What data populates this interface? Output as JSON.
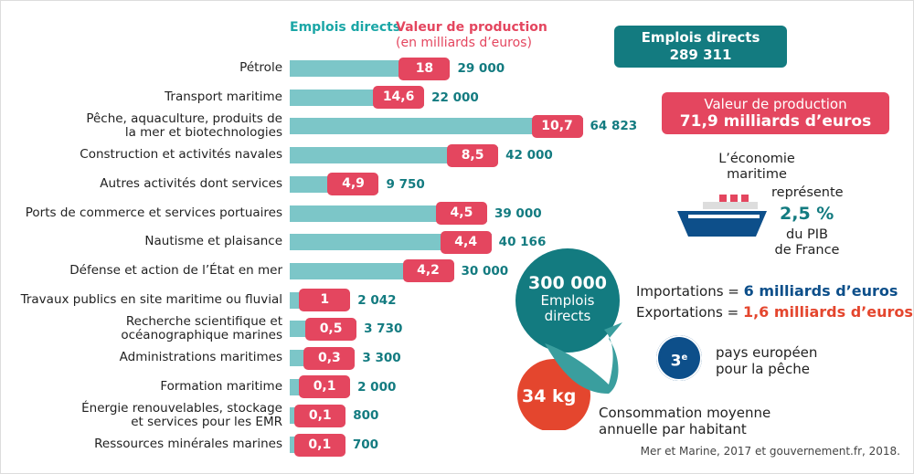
{
  "chart_data": {
    "type": "bar",
    "legend": {
      "jobs": "Emplois directs",
      "value": "Valeur de production",
      "value_unit": "(en milliards d’euros)"
    },
    "categories": [
      "Pétrole",
      "Transport maritime",
      "Pêche, aquaculture, produits de la mer et biotechnologies",
      "Construction et activités navales",
      "Autres activités dont services",
      "Ports de commerce et services portuaires",
      "Nautisme et plaisance",
      "Défense et action de l’État en mer",
      "Travaux publics en site maritime ou fluvial",
      "Recherche scientifique et océanographique marines",
      "Administrations maritimes",
      "Formation maritime",
      "Énergie renouvelables, stockage et services pour les EMR",
      "Ressources minérales marines"
    ],
    "series": [
      {
        "name": "Emplois directs",
        "values": [
          29000,
          22000,
          64823,
          42000,
          9750,
          39000,
          40166,
          30000,
          2042,
          3730,
          3300,
          2000,
          800,
          700
        ],
        "labels": [
          "29 000",
          "22 000",
          "64 823",
          "42 000",
          "9 750",
          "39 000",
          "40 166",
          "30 000",
          "2 042",
          "3 730",
          "3 300",
          "2 000",
          "800",
          "700"
        ]
      },
      {
        "name": "Valeur de production",
        "values": [
          18,
          14.6,
          10.7,
          8.5,
          4.9,
          4.5,
          4.4,
          4.2,
          1,
          0.5,
          0.3,
          0.1,
          0.1,
          0.1
        ],
        "labels": [
          "18",
          "14,6",
          "10,7",
          "8,5",
          "4,9",
          "4,5",
          "4,4",
          "4,2",
          "1",
          "0,5",
          "0,3",
          "0,1",
          "0,1",
          "0,1"
        ]
      }
    ],
    "colors": {
      "jobs": "#7cc6c8",
      "value": "#e4465f",
      "jobs_text": "#137b80"
    }
  },
  "summary": {
    "jobs_title": "Emplois directs",
    "jobs_value": "289 311",
    "value_title": "Valeur de production",
    "value_value": "71,9 milliards d’euros",
    "eco_line1": "L’économie",
    "eco_line2": "maritime",
    "eco_line3": "représente",
    "eco_pct": "2,5 %",
    "eco_line4": "du PIB",
    "eco_line5": "de France"
  },
  "fishing": {
    "jobs_value": "300 000",
    "jobs_l1": "Emplois",
    "jobs_l2": "directs",
    "imports_label": "Importations = ",
    "imports_value": "6 milliards d’euros",
    "exports_label": "Exportations = ",
    "exports_value": "1,6 milliards d’euros",
    "rank": "3",
    "rank_sup": "e",
    "rank_l1": "pays européen",
    "rank_l2": "pour la pêche",
    "kg": "34 kg",
    "cons_l1": "Consommation moyenne",
    "cons_l2": "annuelle par habitant"
  },
  "source": "Mer et Marine, 2017 et gouvernement.fr, 2018."
}
